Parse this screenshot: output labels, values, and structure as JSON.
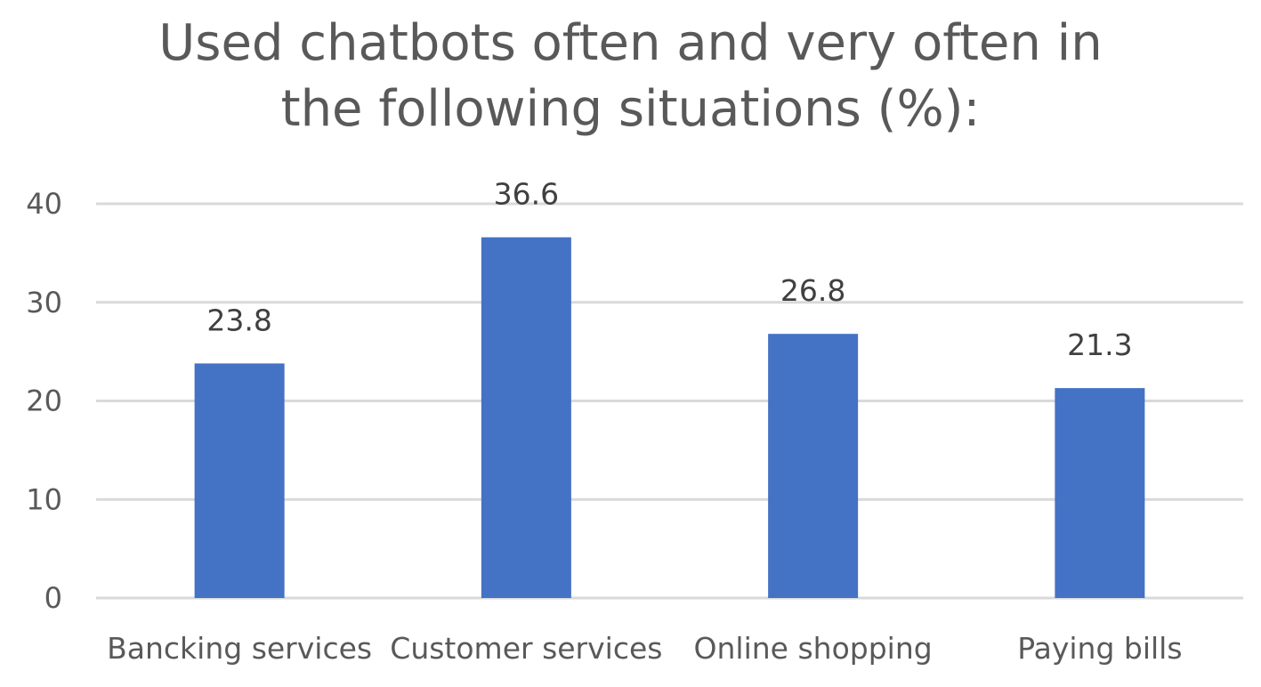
{
  "chart_data": {
    "type": "bar",
    "title_lines": [
      "Used chatbots often and very often in",
      "the following situations (%):"
    ],
    "categories": [
      "Bancking services",
      "Customer services",
      "Online shopping",
      "Paying bills"
    ],
    "values": [
      23.8,
      36.6,
      26.8,
      21.3
    ],
    "data_labels": [
      "23.8",
      "36.6",
      "26.8",
      "21.3"
    ],
    "yticks": [
      "0",
      "10",
      "20",
      "30",
      "40"
    ],
    "ylim": [
      0,
      40
    ],
    "grid": true,
    "legend": "none",
    "bar_color": "#4472C4",
    "grid_color": "#D9D9D9"
  }
}
